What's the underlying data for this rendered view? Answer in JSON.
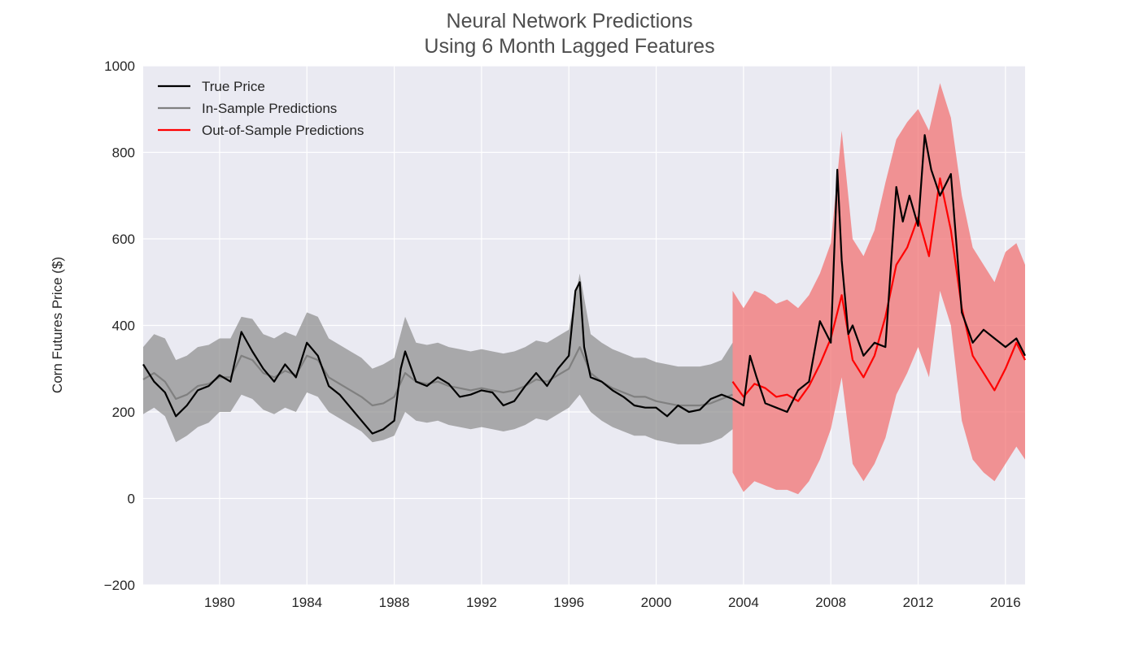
{
  "chart_data": {
    "type": "line",
    "title": [
      "Neural Network Predictions",
      "Using 6 Month Lagged Features"
    ],
    "xlabel": "",
    "ylabel": "Corn Futures Price ($)",
    "xlim": [
      1976.5,
      2016.9
    ],
    "ylim": [
      -200,
      1000
    ],
    "x_ticks": [
      1980,
      1984,
      1988,
      1992,
      1996,
      2000,
      2004,
      2008,
      2012,
      2016
    ],
    "x_tick_labels": [
      "1980",
      "1984",
      "1988",
      "1992",
      "1996",
      "2000",
      "2004",
      "2008",
      "2012",
      "2016"
    ],
    "y_ticks": [
      -200,
      0,
      200,
      400,
      600,
      800,
      1000
    ],
    "y_tick_labels": [
      "−200",
      "0",
      "200",
      "400",
      "600",
      "800",
      "1000"
    ],
    "grid": true,
    "legend_position": "top-left",
    "legend": [
      "True Price",
      "In-Sample Predictions",
      "Out-of-Sample Predictions"
    ],
    "colors": {
      "background": "#eaeaf2",
      "grid": "#ffffff",
      "true_price": "#000000",
      "in_sample": "#808080",
      "in_sample_band": "#8c8c8c",
      "out_sample": "#ff0000",
      "out_sample_band": "#f26b6b"
    },
    "series": [
      {
        "name": "True Price",
        "x": [
          1976.5,
          1977,
          1977.5,
          1978,
          1978.5,
          1979,
          1979.5,
          1980,
          1980.5,
          1981,
          1981.5,
          1982,
          1982.5,
          1983,
          1983.5,
          1984,
          1984.5,
          1985,
          1985.5,
          1986,
          1986.5,
          1987,
          1987.5,
          1988,
          1988.3,
          1988.5,
          1989,
          1989.5,
          1990,
          1990.5,
          1991,
          1991.5,
          1992,
          1992.5,
          1993,
          1993.5,
          1994,
          1994.5,
          1995,
          1995.5,
          1996,
          1996.3,
          1996.5,
          1996.7,
          1997,
          1997.5,
          1998,
          1998.5,
          1999,
          1999.5,
          2000,
          2000.5,
          2001,
          2001.5,
          2002,
          2002.5,
          2003,
          2003.5,
          2004,
          2004.3,
          2004.6,
          2005,
          2005.5,
          2006,
          2006.5,
          2007,
          2007.5,
          2008,
          2008.3,
          2008.5,
          2008.8,
          2009,
          2009.5,
          2010,
          2010.5,
          2011,
          2011.3,
          2011.6,
          2012,
          2012.3,
          2012.6,
          2013,
          2013.5,
          2014,
          2014.5,
          2015,
          2015.5,
          2016,
          2016.5,
          2016.9
        ],
        "y": [
          310,
          270,
          245,
          190,
          215,
          250,
          260,
          285,
          270,
          385,
          340,
          300,
          270,
          310,
          280,
          360,
          330,
          260,
          240,
          210,
          180,
          150,
          160,
          180,
          300,
          340,
          270,
          260,
          280,
          265,
          235,
          240,
          250,
          245,
          215,
          225,
          260,
          290,
          260,
          300,
          330,
          480,
          500,
          350,
          280,
          270,
          250,
          235,
          215,
          210,
          210,
          190,
          215,
          200,
          205,
          230,
          240,
          230,
          215,
          330,
          280,
          220,
          210,
          200,
          250,
          270,
          410,
          360,
          760,
          550,
          380,
          400,
          330,
          360,
          350,
          720,
          640,
          700,
          630,
          840,
          760,
          700,
          750,
          430,
          360,
          390,
          370,
          350,
          370,
          330
        ]
      },
      {
        "name": "In-Sample Predictions",
        "x": [
          1976.5,
          1977,
          1977.5,
          1978,
          1978.5,
          1979,
          1979.5,
          1980,
          1980.5,
          1981,
          1981.5,
          1982,
          1982.5,
          1983,
          1983.5,
          1984,
          1984.5,
          1985,
          1985.5,
          1986,
          1986.5,
          1987,
          1987.5,
          1988,
          1988.5,
          1989,
          1989.5,
          1990,
          1990.5,
          1991,
          1991.5,
          1992,
          1992.5,
          1993,
          1993.5,
          1994,
          1994.5,
          1995,
          1995.5,
          1996,
          1996.5,
          1997,
          1997.5,
          1998,
          1998.5,
          1999,
          1999.5,
          2000,
          2000.5,
          2001,
          2001.5,
          2002,
          2002.5,
          2003,
          2003.5
        ],
        "y": [
          275,
          290,
          270,
          230,
          240,
          260,
          265,
          280,
          280,
          330,
          320,
          290,
          280,
          295,
          285,
          330,
          320,
          280,
          265,
          250,
          235,
          215,
          220,
          235,
          290,
          270,
          265,
          270,
          260,
          255,
          250,
          255,
          250,
          245,
          250,
          260,
          275,
          270,
          285,
          300,
          350,
          290,
          270,
          255,
          245,
          235,
          235,
          225,
          220,
          215,
          215,
          215,
          220,
          230,
          240
        ]
      },
      {
        "name": "Out-of-Sample Predictions",
        "x": [
          2003.5,
          2004,
          2004.5,
          2005,
          2005.5,
          2006,
          2006.5,
          2007,
          2007.5,
          2008,
          2008.5,
          2009,
          2009.5,
          2010,
          2010.5,
          2011,
          2011.5,
          2012,
          2012.5,
          2013,
          2013.5,
          2014,
          2014.5,
          2015,
          2015.5,
          2016,
          2016.5,
          2016.9
        ],
        "y": [
          270,
          235,
          265,
          255,
          235,
          240,
          225,
          260,
          310,
          370,
          470,
          320,
          280,
          330,
          420,
          540,
          580,
          650,
          560,
          740,
          620,
          440,
          330,
          290,
          250,
          300,
          360,
          320
        ]
      }
    ],
    "bands": [
      {
        "name": "In-Sample Predictions",
        "x": [
          1976.5,
          1977,
          1977.5,
          1978,
          1978.5,
          1979,
          1979.5,
          1980,
          1980.5,
          1981,
          1981.5,
          1982,
          1982.5,
          1983,
          1983.5,
          1984,
          1984.5,
          1985,
          1985.5,
          1986,
          1986.5,
          1987,
          1987.5,
          1988,
          1988.5,
          1989,
          1989.5,
          1990,
          1990.5,
          1991,
          1991.5,
          1992,
          1992.5,
          1993,
          1993.5,
          1994,
          1994.5,
          1995,
          1995.5,
          1996,
          1996.5,
          1997,
          1997.5,
          1998,
          1998.5,
          1999,
          1999.5,
          2000,
          2000.5,
          2001,
          2001.5,
          2002,
          2002.5,
          2003,
          2003.5
        ],
        "upper": [
          350,
          380,
          370,
          320,
          330,
          350,
          355,
          370,
          370,
          420,
          415,
          380,
          370,
          385,
          375,
          430,
          420,
          370,
          355,
          340,
          325,
          300,
          310,
          325,
          420,
          360,
          355,
          360,
          350,
          345,
          340,
          345,
          340,
          335,
          340,
          350,
          365,
          360,
          375,
          390,
          520,
          380,
          360,
          345,
          335,
          325,
          325,
          315,
          310,
          305,
          305,
          305,
          310,
          320,
          360
        ],
        "lower": [
          195,
          210,
          190,
          130,
          145,
          165,
          175,
          200,
          200,
          240,
          230,
          205,
          195,
          210,
          200,
          245,
          235,
          200,
          185,
          170,
          155,
          130,
          135,
          145,
          200,
          180,
          175,
          180,
          170,
          165,
          160,
          165,
          160,
          155,
          160,
          170,
          185,
          180,
          195,
          210,
          240,
          200,
          180,
          165,
          155,
          145,
          145,
          135,
          130,
          125,
          125,
          125,
          130,
          140,
          160
        ]
      },
      {
        "name": "Out-of-Sample Predictions",
        "x": [
          2003.5,
          2004,
          2004.5,
          2005,
          2005.5,
          2006,
          2006.5,
          2007,
          2007.5,
          2008,
          2008.5,
          2009,
          2009.5,
          2010,
          2010.5,
          2011,
          2011.5,
          2012,
          2012.5,
          2013,
          2013.5,
          2014,
          2014.5,
          2015,
          2015.5,
          2016,
          2016.5,
          2016.9
        ],
        "upper": [
          480,
          440,
          480,
          470,
          450,
          460,
          440,
          470,
          520,
          590,
          850,
          600,
          560,
          620,
          730,
          830,
          870,
          900,
          850,
          960,
          880,
          700,
          580,
          540,
          500,
          570,
          590,
          540
        ],
        "lower": [
          60,
          15,
          40,
          30,
          20,
          20,
          10,
          40,
          90,
          160,
          280,
          80,
          40,
          80,
          140,
          240,
          290,
          350,
          280,
          480,
          400,
          180,
          90,
          60,
          40,
          80,
          120,
          90
        ]
      }
    ]
  }
}
